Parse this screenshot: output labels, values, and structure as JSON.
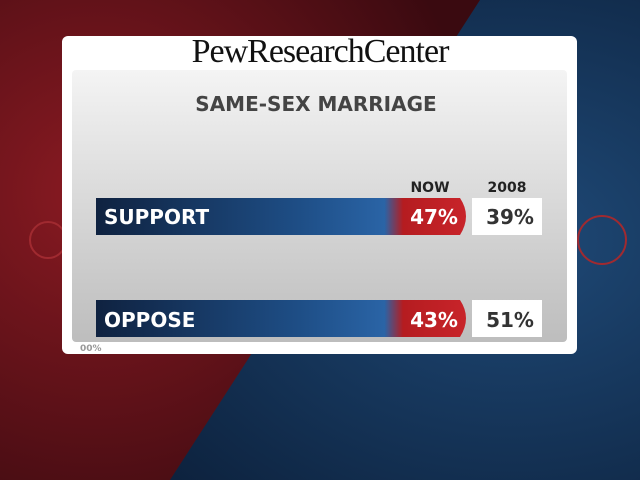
{
  "header": {
    "title": "PewResearchCenter"
  },
  "graphic": {
    "title": "SAME-SEX MARRIAGE",
    "columns": [
      "NOW",
      "2008"
    ],
    "rows": [
      {
        "label": "SUPPORT",
        "now": "47%",
        "prior": "39%"
      },
      {
        "label": "OPPOSE",
        "now": "43%",
        "prior": "51%"
      }
    ]
  },
  "footer": "00%"
}
